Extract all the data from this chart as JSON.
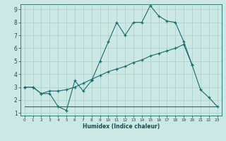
{
  "xlabel": "Humidex (Indice chaleur)",
  "background_color": "#cce8e5",
  "grid_color": "#aacfcb",
  "line_color": "#1a6b6b",
  "xlim": [
    -0.5,
    23.5
  ],
  "ylim": [
    0.8,
    9.4
  ],
  "xticks": [
    0,
    1,
    2,
    3,
    4,
    5,
    6,
    7,
    8,
    9,
    10,
    11,
    12,
    13,
    14,
    15,
    16,
    17,
    18,
    19,
    20,
    21,
    22,
    23
  ],
  "yticks": [
    1,
    2,
    3,
    4,
    5,
    6,
    7,
    8,
    9
  ],
  "line1_x": [
    0,
    1,
    2,
    3,
    4,
    5,
    6,
    7,
    8,
    9,
    10,
    11,
    12,
    13,
    14,
    15,
    16,
    17,
    18,
    19,
    20,
    21,
    22,
    23
  ],
  "line1_y": [
    3.0,
    3.0,
    2.5,
    2.5,
    1.5,
    1.2,
    3.5,
    2.7,
    3.5,
    5.0,
    6.5,
    8.0,
    7.0,
    8.0,
    8.0,
    9.3,
    8.5,
    8.1,
    8.0,
    6.5,
    4.7,
    2.8,
    2.2,
    1.5
  ],
  "line2_x": [
    0,
    1,
    2,
    3,
    4,
    5,
    6,
    7,
    8,
    9,
    10,
    11,
    12,
    13,
    14,
    15,
    16,
    17,
    18,
    19,
    20
  ],
  "line2_y": [
    3.0,
    3.0,
    2.5,
    2.7,
    2.7,
    2.8,
    3.0,
    3.3,
    3.6,
    3.9,
    4.2,
    4.4,
    4.6,
    4.9,
    5.1,
    5.4,
    5.6,
    5.8,
    6.0,
    6.3,
    4.7
  ],
  "line3_x": [
    0,
    23
  ],
  "line3_y": [
    1.5,
    1.5
  ]
}
